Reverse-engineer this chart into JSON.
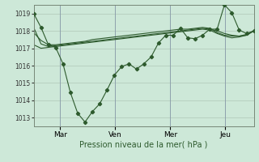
{
  "xlabel": "Pression niveau de la mer( hPa )",
  "background_color": "#cde8d8",
  "grid_color": "#b0c8b8",
  "line_color": "#2d5a2d",
  "ylim": [
    1012.5,
    1019.5
  ],
  "yticks": [
    1013,
    1014,
    1015,
    1016,
    1017,
    1018,
    1019
  ],
  "xtick_labels": [
    "Mar",
    "Ven",
    "Mer",
    "Jeu"
  ],
  "xtick_positions": [
    0.12,
    0.37,
    0.62,
    0.87
  ],
  "vline_positions": [
    0.12,
    0.37,
    0.62,
    0.87
  ],
  "series0": [
    1019.0,
    1018.2,
    1017.2,
    1017.05,
    1016.1,
    1014.45,
    1013.25,
    1012.75,
    1013.35,
    1013.8,
    1014.6,
    1015.45,
    1015.95,
    1016.1,
    1015.8,
    1016.1,
    1016.5,
    1017.3,
    1017.75,
    1017.75,
    1018.15,
    1017.6,
    1017.55,
    1017.75,
    1018.1,
    1018.1,
    1019.5,
    1019.05,
    1018.05,
    1017.85,
    1018.0
  ],
  "series1": [
    1018.2,
    1017.25,
    1017.1,
    1017.15,
    1017.2,
    1017.25,
    1017.3,
    1017.35,
    1017.4,
    1017.45,
    1017.5,
    1017.55,
    1017.6,
    1017.65,
    1017.7,
    1017.75,
    1017.8,
    1017.85,
    1017.9,
    1017.95,
    1018.0,
    1018.05,
    1018.1,
    1018.15,
    1018.1,
    1018.0,
    1017.85,
    1017.75,
    1017.7,
    1017.75,
    1018.0
  ],
  "series2": [
    1017.2,
    1017.0,
    1017.05,
    1017.1,
    1017.15,
    1017.2,
    1017.25,
    1017.3,
    1017.35,
    1017.4,
    1017.45,
    1017.5,
    1017.55,
    1017.6,
    1017.65,
    1017.7,
    1017.75,
    1017.8,
    1017.85,
    1017.9,
    1017.95,
    1018.0,
    1018.05,
    1018.1,
    1018.05,
    1017.85,
    1017.7,
    1017.6,
    1017.65,
    1017.75,
    1018.0
  ],
  "series3": [
    1017.9,
    1017.45,
    1017.2,
    1017.2,
    1017.25,
    1017.3,
    1017.35,
    1017.4,
    1017.5,
    1017.55,
    1017.6,
    1017.65,
    1017.7,
    1017.75,
    1017.8,
    1017.85,
    1017.9,
    1017.95,
    1018.0,
    1018.05,
    1018.1,
    1018.1,
    1018.15,
    1018.2,
    1018.15,
    1017.9,
    1017.75,
    1017.7,
    1017.7,
    1017.8,
    1018.0
  ],
  "n_points": 31
}
